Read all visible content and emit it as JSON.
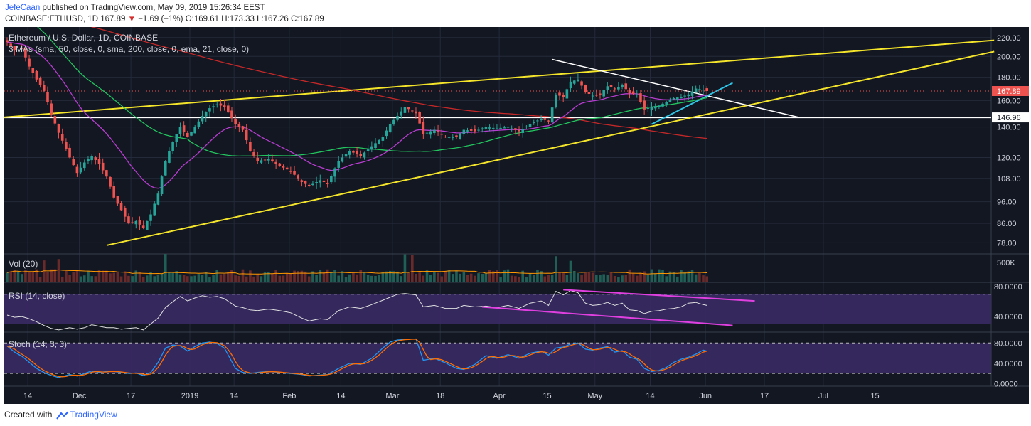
{
  "header": {
    "author": "JefeCaan",
    "published_text": "published on TradingView.com, May 09, 2019 15:26:34 EEST",
    "symbol": "COINBASE:ETHUSD, 1D",
    "last": "167.89",
    "change": "−1.69 (−1%)",
    "ohlc": "O:169.61 H:173.33 L:167.26 C:167.89"
  },
  "footer": {
    "created_with": "Created with",
    "brand": "TradingView"
  },
  "colors": {
    "background": "#131722",
    "up": "#26a69a",
    "down": "#ef5350",
    "sma50": "#22c55e",
    "sma200": "#c62828",
    "ema21": "#b83dd1",
    "trendline": "#f5e52a",
    "support": "#ffffff",
    "cyan": "#2ec4e6",
    "rsi_line": "#e0e0e0",
    "divergence": "#e040e0",
    "stoch_k": "#2196f3",
    "stoch_d": "#ff6d00",
    "panel_fill": "#3a2a64"
  },
  "chart_data": {
    "type": "candlestick",
    "title": "Ethereum / U.S. Dollar, 1D, COINBASE",
    "indicators_label": "3 MAs (sma, 50, close, 0, sma, 200, close, 0, ema, 21, close, 0)",
    "y_scale": "log",
    "y_ticks": [
      220,
      200,
      180,
      160,
      140,
      120,
      108,
      96,
      86,
      78
    ],
    "ylim": [
      74,
      232
    ],
    "x_tick_labels": [
      "14",
      "Dec",
      "17",
      "2019",
      "14",
      "Feb",
      "14",
      "Mar",
      "18",
      "Apr",
      "15",
      "May",
      "14",
      "Jun",
      "17",
      "Jul",
      "15"
    ],
    "price_labels": [
      {
        "value": 167.89,
        "text": "167.89"
      },
      {
        "value": 146.96,
        "text": "146.96"
      }
    ],
    "price_anchors": [
      [
        0,
        215
      ],
      [
        2,
        206
      ],
      [
        4,
        208
      ],
      [
        6,
        190
      ],
      [
        8,
        178
      ],
      [
        10,
        168
      ],
      [
        12,
        149
      ],
      [
        14,
        136
      ],
      [
        17,
        120
      ],
      [
        19,
        111
      ],
      [
        21,
        117
      ],
      [
        23,
        121
      ],
      [
        25,
        116
      ],
      [
        27,
        109
      ],
      [
        29,
        98
      ],
      [
        31,
        92
      ],
      [
        33,
        86
      ],
      [
        35,
        87
      ],
      [
        37,
        84
      ],
      [
        39,
        90
      ],
      [
        41,
        100
      ],
      [
        43,
        118
      ],
      [
        45,
        130
      ],
      [
        47,
        140
      ],
      [
        49,
        133
      ],
      [
        51,
        140
      ],
      [
        53,
        148
      ],
      [
        55,
        154
      ],
      [
        57,
        157
      ],
      [
        59,
        155
      ],
      [
        62,
        142
      ],
      [
        64,
        138
      ],
      [
        66,
        124
      ],
      [
        68,
        118
      ],
      [
        71,
        119
      ],
      [
        74,
        115
      ],
      [
        77,
        112
      ],
      [
        80,
        106
      ],
      [
        82,
        104
      ],
      [
        85,
        107
      ],
      [
        87,
        105
      ],
      [
        90,
        118
      ],
      [
        93,
        124
      ],
      [
        96,
        121
      ],
      [
        99,
        127
      ],
      [
        102,
        133
      ],
      [
        104,
        142
      ],
      [
        106,
        148
      ],
      [
        108,
        155
      ],
      [
        111,
        150
      ],
      [
        113,
        135
      ],
      [
        116,
        138
      ],
      [
        119,
        133
      ],
      [
        122,
        133
      ],
      [
        124,
        138
      ],
      [
        127,
        137
      ],
      [
        130,
        140
      ],
      [
        133,
        139
      ],
      [
        136,
        140
      ],
      [
        139,
        137
      ],
      [
        142,
        142
      ],
      [
        145,
        146
      ],
      [
        147,
        144
      ],
      [
        149,
        165
      ],
      [
        151,
        163
      ],
      [
        153,
        176
      ],
      [
        155,
        178
      ],
      [
        157,
        167
      ],
      [
        159,
        164
      ],
      [
        161,
        165
      ],
      [
        163,
        172
      ],
      [
        165,
        170
      ],
      [
        167,
        173
      ],
      [
        169,
        166
      ],
      [
        171,
        165
      ],
      [
        173,
        153
      ],
      [
        175,
        155
      ],
      [
        177,
        156
      ],
      [
        179,
        159
      ],
      [
        181,
        162
      ],
      [
        183,
        163
      ],
      [
        185,
        165
      ],
      [
        187,
        170
      ],
      [
        189,
        169
      ],
      [
        190,
        167.89
      ]
    ],
    "volume_label": "Vol (20)",
    "volume_ticks": [
      "500K"
    ],
    "rsi_label": "RSI (14, close)",
    "rsi_ticks": [
      "80.0000",
      "40.0000"
    ],
    "rsi_range": [
      20,
      85
    ],
    "rsi_levels": [
      70,
      30
    ],
    "rsi_anchors": [
      [
        0,
        42
      ],
      [
        2,
        39
      ],
      [
        4,
        40
      ],
      [
        6,
        37
      ],
      [
        8,
        33
      ],
      [
        10,
        28
      ],
      [
        12,
        24
      ],
      [
        14,
        22
      ],
      [
        17,
        25
      ],
      [
        19,
        23
      ],
      [
        21,
        25
      ],
      [
        23,
        29
      ],
      [
        25,
        27
      ],
      [
        27,
        25
      ],
      [
        29,
        25
      ],
      [
        31,
        23
      ],
      [
        33,
        24
      ],
      [
        35,
        25
      ],
      [
        37,
        22
      ],
      [
        39,
        30
      ],
      [
        41,
        38
      ],
      [
        43,
        52
      ],
      [
        45,
        60
      ],
      [
        47,
        67
      ],
      [
        49,
        61
      ],
      [
        51,
        65
      ],
      [
        53,
        68
      ],
      [
        55,
        66
      ],
      [
        57,
        67
      ],
      [
        59,
        64
      ],
      [
        62,
        54
      ],
      [
        64,
        52
      ],
      [
        66,
        49
      ],
      [
        68,
        48
      ],
      [
        71,
        50
      ],
      [
        74,
        48
      ],
      [
        77,
        45
      ],
      [
        80,
        38
      ],
      [
        82,
        34
      ],
      [
        85,
        37
      ],
      [
        87,
        36
      ],
      [
        90,
        48
      ],
      [
        93,
        53
      ],
      [
        96,
        51
      ],
      [
        99,
        56
      ],
      [
        102,
        62
      ],
      [
        104,
        66
      ],
      [
        106,
        70
      ],
      [
        108,
        71
      ],
      [
        111,
        69
      ],
      [
        113,
        53
      ],
      [
        116,
        55
      ],
      [
        119,
        51
      ],
      [
        122,
        51
      ],
      [
        124,
        55
      ],
      [
        127,
        53
      ],
      [
        130,
        54
      ],
      [
        133,
        52
      ],
      [
        136,
        55
      ],
      [
        139,
        51
      ],
      [
        142,
        58
      ],
      [
        145,
        61
      ],
      [
        147,
        55
      ],
      [
        149,
        74
      ],
      [
        151,
        69
      ],
      [
        153,
        75
      ],
      [
        155,
        72
      ],
      [
        157,
        58
      ],
      [
        159,
        55
      ],
      [
        161,
        56
      ],
      [
        163,
        59
      ],
      [
        165,
        55
      ],
      [
        167,
        58
      ],
      [
        169,
        49
      ],
      [
        171,
        48
      ],
      [
        173,
        44
      ],
      [
        175,
        47
      ],
      [
        177,
        48
      ],
      [
        179,
        50
      ],
      [
        181,
        51
      ],
      [
        183,
        53
      ],
      [
        185,
        58
      ],
      [
        187,
        59
      ],
      [
        189,
        56
      ],
      [
        190,
        55
      ]
    ],
    "stoch_label": "Stoch (14, 3, 3)",
    "stoch_ticks": [
      "80.0000",
      "40.0000",
      "0.0000"
    ],
    "stoch_range": [
      -5,
      100
    ],
    "stoch_levels": [
      80,
      20
    ],
    "stoch_anchors": [
      [
        0,
        74
      ],
      [
        2,
        62
      ],
      [
        4,
        54
      ],
      [
        6,
        42
      ],
      [
        8,
        30
      ],
      [
        10,
        22
      ],
      [
        12,
        16
      ],
      [
        14,
        12
      ],
      [
        17,
        18
      ],
      [
        19,
        15
      ],
      [
        21,
        20
      ],
      [
        23,
        25
      ],
      [
        25,
        22
      ],
      [
        27,
        24
      ],
      [
        29,
        24
      ],
      [
        31,
        22
      ],
      [
        33,
        20
      ],
      [
        35,
        21
      ],
      [
        37,
        16
      ],
      [
        39,
        22
      ],
      [
        41,
        42
      ],
      [
        43,
        70
      ],
      [
        45,
        76
      ],
      [
        47,
        74
      ],
      [
        49,
        64
      ],
      [
        51,
        73
      ],
      [
        53,
        80
      ],
      [
        55,
        82
      ],
      [
        57,
        79
      ],
      [
        59,
        70
      ],
      [
        62,
        30
      ],
      [
        64,
        22
      ],
      [
        66,
        20
      ],
      [
        68,
        22
      ],
      [
        71,
        24
      ],
      [
        74,
        22
      ],
      [
        77,
        20
      ],
      [
        80,
        18
      ],
      [
        82,
        15
      ],
      [
        85,
        17
      ],
      [
        87,
        18
      ],
      [
        90,
        30
      ],
      [
        93,
        40
      ],
      [
        96,
        38
      ],
      [
        99,
        50
      ],
      [
        102,
        70
      ],
      [
        104,
        82
      ],
      [
        106,
        86
      ],
      [
        108,
        87
      ],
      [
        111,
        88
      ],
      [
        113,
        46
      ],
      [
        116,
        50
      ],
      [
        119,
        41
      ],
      [
        122,
        30
      ],
      [
        124,
        28
      ],
      [
        127,
        38
      ],
      [
        130,
        55
      ],
      [
        133,
        50
      ],
      [
        136,
        57
      ],
      [
        139,
        50
      ],
      [
        142,
        60
      ],
      [
        145,
        64
      ],
      [
        147,
        56
      ],
      [
        149,
        70
      ],
      [
        151,
        72
      ],
      [
        153,
        78
      ],
      [
        155,
        80
      ],
      [
        157,
        68
      ],
      [
        159,
        66
      ],
      [
        161,
        70
      ],
      [
        163,
        73
      ],
      [
        165,
        62
      ],
      [
        167,
        65
      ],
      [
        169,
        52
      ],
      [
        171,
        48
      ],
      [
        173,
        30
      ],
      [
        175,
        24
      ],
      [
        177,
        26
      ],
      [
        179,
        32
      ],
      [
        181,
        42
      ],
      [
        183,
        48
      ],
      [
        185,
        52
      ],
      [
        187,
        58
      ],
      [
        189,
        66
      ],
      [
        190,
        64
      ]
    ]
  }
}
